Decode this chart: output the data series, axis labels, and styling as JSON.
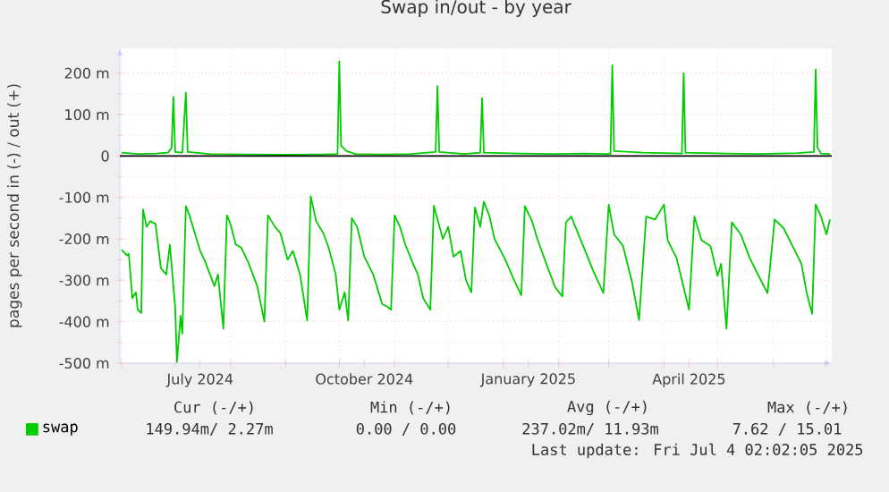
{
  "chart_data": {
    "type": "line",
    "title": "Swap in/out - by year",
    "ylabel": "pages per second in (-) / out (+)",
    "xlim": [
      "2024-05-31",
      "2025-07-04"
    ],
    "xticks": [
      {
        "value": "2024-07-15",
        "label": "July 2024"
      },
      {
        "value": "2024-10-15",
        "label": "October 2024"
      },
      {
        "value": "2025-01-15",
        "label": "January 2025"
      },
      {
        "value": "2025-04-15",
        "label": "April 2025"
      },
      {
        "value": "2024-06-01",
        "label": null
      },
      {
        "value": "2024-07-01",
        "label": null
      },
      {
        "value": "2024-08-01",
        "label": null
      },
      {
        "value": "2024-09-01",
        "label": null
      },
      {
        "value": "2024-10-01",
        "label": null
      },
      {
        "value": "2024-11-01",
        "label": null
      },
      {
        "value": "2024-12-01",
        "label": null
      },
      {
        "value": "2025-01-01",
        "label": null
      },
      {
        "value": "2025-02-01",
        "label": null
      },
      {
        "value": "2025-03-01",
        "label": null
      },
      {
        "value": "2025-04-01",
        "label": null
      },
      {
        "value": "2025-05-01",
        "label": null
      },
      {
        "value": "2025-06-01",
        "label": null
      },
      {
        "value": "2025-07-01",
        "label": null
      }
    ],
    "ylim": [
      -500,
      260
    ],
    "yticks": [
      {
        "value": -500,
        "label": "-500 m"
      },
      {
        "value": -400,
        "label": "-400 m"
      },
      {
        "value": -300,
        "label": "-300 m"
      },
      {
        "value": -200,
        "label": "-200 m"
      },
      {
        "value": -100,
        "label": "-100 m"
      },
      0,
      {
        "value": 100,
        "label": "100 m"
      },
      {
        "value": 200,
        "label": "200 m"
      }
    ],
    "grid": true,
    "legend": "bottom",
    "series": [
      {
        "name": "swap",
        "color": "#00cc00",
        "x": [
          "2024-06-01",
          "2024-06-10",
          "2024-06-20",
          "2024-06-27",
          "2024-06-29",
          "2024-06-30",
          "2024-07-01",
          "2024-07-05",
          "2024-07-07",
          "2024-07-08",
          "2024-07-20",
          "2024-08-10",
          "2024-09-01",
          "2024-09-20",
          "2024-09-30",
          "2024-10-01",
          "2024-10-02",
          "2024-10-05",
          "2024-10-10",
          "2024-10-25",
          "2024-11-10",
          "2024-11-24",
          "2024-11-25",
          "2024-11-26",
          "2024-12-10",
          "2024-12-19",
          "2024-12-20",
          "2024-12-21",
          "2025-01-10",
          "2025-01-30",
          "2025-02-15",
          "2025-03-02",
          "2025-03-03",
          "2025-03-04",
          "2025-03-20",
          "2025-04-11",
          "2025-04-12",
          "2025-04-13",
          "2025-05-05",
          "2025-05-25",
          "2025-06-15",
          "2025-06-24",
          "2025-06-25",
          "2025-06-26",
          "2025-06-28",
          "2025-07-03"
        ],
        "values": [
          8,
          5,
          6,
          8,
          20,
          143,
          10,
          8,
          153,
          10,
          5,
          4,
          3,
          4,
          5,
          229,
          25,
          12,
          5,
          4,
          5,
          10,
          169,
          10,
          5,
          8,
          140,
          8,
          6,
          5,
          6,
          5,
          219,
          12,
          8,
          6,
          200,
          8,
          6,
          5,
          7,
          10,
          209,
          20,
          6,
          5
        ]
      },
      {
        "color": "#00cc00",
        "x": [
          "2024-06-01",
          "2024-06-04",
          "2024-06-05",
          "2024-06-07",
          "2024-06-09",
          "2024-06-10",
          "2024-06-12",
          "2024-06-13",
          "2024-06-15",
          "2024-06-17",
          "2024-06-20",
          "2024-06-23",
          "2024-06-26",
          "2024-06-28",
          "2024-07-01",
          "2024-07-02",
          "2024-07-04",
          "2024-07-05",
          "2024-07-07",
          "2024-07-09",
          "2024-07-12",
          "2024-07-15",
          "2024-07-18",
          "2024-07-23",
          "2024-07-25",
          "2024-07-28",
          "2024-07-30",
          "2024-08-01",
          "2024-08-04",
          "2024-08-07",
          "2024-08-11",
          "2024-08-16",
          "2024-08-20",
          "2024-08-22",
          "2024-08-26",
          "2024-08-29",
          "2024-09-02",
          "2024-09-05",
          "2024-09-09",
          "2024-09-13",
          "2024-09-15",
          "2024-09-18",
          "2024-09-22",
          "2024-09-25",
          "2024-09-29",
          "2024-10-01",
          "2024-10-04",
          "2024-10-06",
          "2024-10-08",
          "2024-10-11",
          "2024-10-15",
          "2024-10-20",
          "2024-10-25",
          "2024-10-28",
          "2024-10-30",
          "2024-11-01",
          "2024-11-04",
          "2024-11-07",
          "2024-11-11",
          "2024-11-14",
          "2024-11-17",
          "2024-11-21",
          "2024-11-23",
          "2024-11-28",
          "2024-12-01",
          "2024-12-04",
          "2024-12-08",
          "2024-12-11",
          "2024-12-14",
          "2024-12-16",
          "2024-12-19",
          "2024-12-21",
          "2024-12-24",
          "2024-12-27",
          "2025-01-02",
          "2025-01-07",
          "2025-01-11",
          "2025-01-13",
          "2025-01-17",
          "2025-01-20",
          "2025-01-25",
          "2025-01-30",
          "2025-02-03",
          "2025-02-05",
          "2025-02-08",
          "2025-02-12",
          "2025-02-16",
          "2025-02-20",
          "2025-02-26",
          "2025-03-01",
          "2025-03-04",
          "2025-03-09",
          "2025-03-14",
          "2025-03-18",
          "2025-03-22",
          "2025-03-27",
          "2025-04-01",
          "2025-04-03",
          "2025-04-08",
          "2025-04-12",
          "2025-04-15",
          "2025-04-18",
          "2025-04-22",
          "2025-04-27",
          "2025-05-01",
          "2025-05-03",
          "2025-05-06",
          "2025-05-09",
          "2025-05-14",
          "2025-05-19",
          "2025-05-24",
          "2025-05-29",
          "2025-06-02",
          "2025-06-07",
          "2025-06-12",
          "2025-06-17",
          "2025-06-20",
          "2025-06-23",
          "2025-06-25",
          "2025-06-28",
          "2025-07-01",
          "2025-07-03"
        ],
        "values": [
          -226,
          -240,
          -236,
          -343,
          -329,
          -371,
          -379,
          -129,
          -171,
          -157,
          -164,
          -271,
          -286,
          -214,
          -364,
          -497,
          -386,
          -429,
          -121,
          -143,
          -186,
          -229,
          -257,
          -314,
          -286,
          -417,
          -143,
          -164,
          -214,
          -221,
          -257,
          -314,
          -400,
          -143,
          -171,
          -186,
          -250,
          -229,
          -286,
          -397,
          -97,
          -157,
          -186,
          -221,
          -286,
          -371,
          -329,
          -397,
          -150,
          -171,
          -243,
          -286,
          -357,
          -364,
          -371,
          -143,
          -171,
          -214,
          -257,
          -286,
          -343,
          -371,
          -120,
          -200,
          -171,
          -243,
          -229,
          -300,
          -329,
          -124,
          -171,
          -110,
          -143,
          -200,
          -250,
          -300,
          -336,
          -121,
          -157,
          -200,
          -260,
          -317,
          -339,
          -160,
          -146,
          -189,
          -231,
          -274,
          -331,
          -117,
          -189,
          -217,
          -303,
          -396,
          -146,
          -153,
          -117,
          -203,
          -246,
          -317,
          -371,
          -146,
          -203,
          -217,
          -289,
          -260,
          -417,
          -160,
          -189,
          -246,
          -289,
          -331,
          -153,
          -174,
          -217,
          -260,
          -331,
          -381,
          -117,
          -146,
          -189,
          -153
        ]
      }
    ],
    "ref_lines": [
      {
        "axis": "y",
        "value": 0,
        "color": "#000000"
      }
    ],
    "annotations": [
      "Cur (-/+)",
      "Min (-/+)",
      "Avg (-/+)",
      "Max (-/+)",
      "149.94m/ 2.27m",
      "0.00 / 0.00",
      "237.02m/ 11.93m",
      "7.62 / 15.01",
      "Last update: Fri Jul 4 02:02:05 2025"
    ]
  }
}
